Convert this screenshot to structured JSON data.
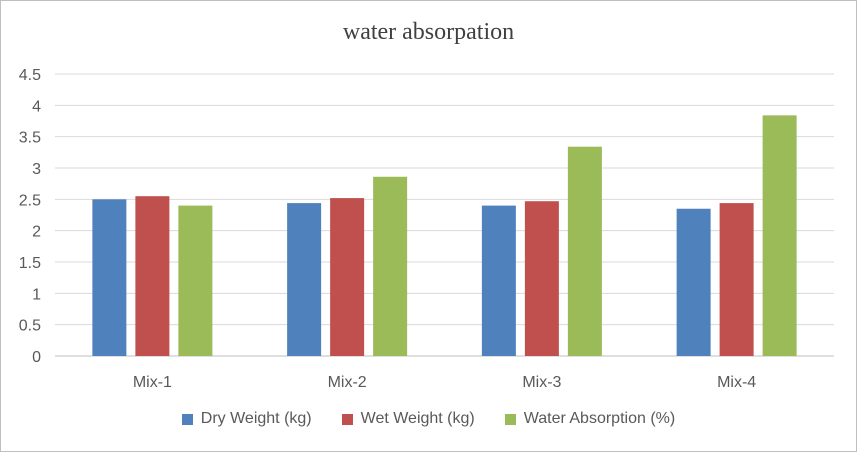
{
  "chart_data": {
    "type": "bar",
    "title": "water absorpation",
    "categories": [
      "Mix-1",
      "Mix-2",
      "Mix-3",
      "Mix-4"
    ],
    "series": [
      {
        "name": "Dry Weight (kg)",
        "color": "#4f81bd",
        "values": [
          2.5,
          2.44,
          2.4,
          2.35
        ]
      },
      {
        "name": "Wet Weight (kg)",
        "color": "#c0504d",
        "values": [
          2.55,
          2.52,
          2.47,
          2.44
        ]
      },
      {
        "name": "Water Absorption (%)",
        "color": "#9bbb59",
        "values": [
          2.4,
          2.86,
          3.34,
          3.84
        ]
      }
    ],
    "ylim": [
      0,
      4.5
    ],
    "yticks": [
      "0",
      "0.5",
      "1",
      "1.5",
      "2",
      "2.5",
      "3",
      "3.5",
      "4",
      "4.5"
    ],
    "grid": true,
    "legend_position": "bottom",
    "xlabel": "",
    "ylabel": "",
    "gridline_color": "#d9d9d9",
    "axis_color": "#bfbfbf"
  }
}
